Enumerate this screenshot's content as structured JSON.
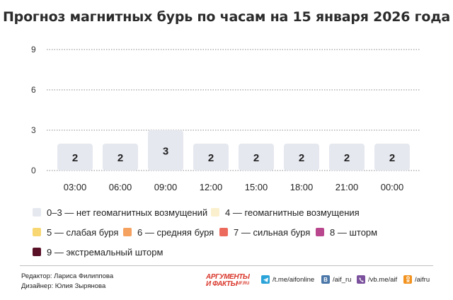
{
  "title": "Прогноз магнитных бурь по часам на 15 января 2026 года",
  "chart_data": {
    "type": "bar",
    "categories": [
      "03:00",
      "06:00",
      "09:00",
      "12:00",
      "15:00",
      "18:00",
      "21:00",
      "00:00"
    ],
    "values": [
      2,
      2,
      3,
      2,
      2,
      2,
      2,
      2
    ],
    "y_ticks": [
      "0",
      "3",
      "6",
      "9"
    ],
    "ylim": [
      0,
      9
    ],
    "grid": "dotted horizontal",
    "bar_color": "#e6e8f0",
    "title": "Прогноз магнитных бурь по часам на 15 января 2026 года"
  },
  "legend": [
    {
      "label": "0–3 — нет геомагнитных возмущений",
      "color": "#e6e8f0"
    },
    {
      "label": "4 — геомагнитные возмущения",
      "color": "#fbf0cd"
    },
    {
      "label": "5 — слабая буря",
      "color": "#f8d773"
    },
    {
      "label": "6 — средняя буря",
      "color": "#f5a15f"
    },
    {
      "label": "7 — сильная буря",
      "color": "#ec6a5c"
    },
    {
      "label": "8 — шторм",
      "color": "#b9478e"
    },
    {
      "label": "9 — экстремальный шторм",
      "color": "#5a1128"
    }
  ],
  "credits": {
    "editor": "Редактор: Лариса Филиппова",
    "designer": "Дизайнер: Юлия Зырянова"
  },
  "brand": {
    "line1": "АРГУМЕНТЫ",
    "line2": "И ФАКТЫ",
    "site": "AIF.RU",
    "color": "#d9382c"
  },
  "social": [
    {
      "icon": "telegram-icon",
      "text": "/t.me/aifonline",
      "color": "#2aa3d8"
    },
    {
      "icon": "vk-icon",
      "text": "/aif_ru",
      "color": "#4a76a8"
    },
    {
      "icon": "viber-icon",
      "text": "/vb.me/aif",
      "color": "#7b519d"
    },
    {
      "icon": "odnoklassniki-icon",
      "text": "/aifru",
      "color": "#f2931f"
    }
  ]
}
